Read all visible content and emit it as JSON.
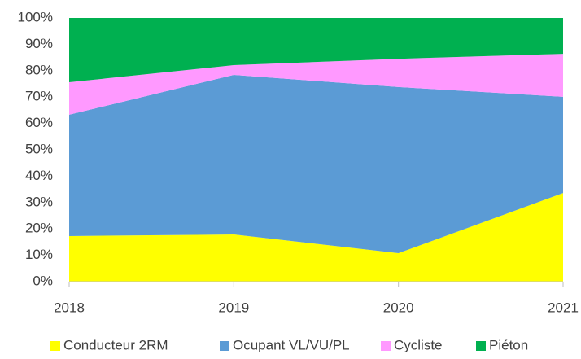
{
  "chart_data": {
    "type": "stacked_area",
    "categories": [
      "2018",
      "2019",
      "2020",
      "2021"
    ],
    "series": [
      {
        "name": "Conducteur 2RM",
        "color": "#ffff00",
        "values": [
          17.3,
          17.9,
          10.8,
          33.6
        ]
      },
      {
        "name": "Ocupant VL/VU/PL",
        "color": "#5b9bd5",
        "values": [
          46,
          60.5,
          63,
          36.5
        ]
      },
      {
        "name": "Cycliste",
        "color": "#ff99ff",
        "values": [
          12.3,
          3.7,
          10.7,
          16.3
        ]
      },
      {
        "name": "Piéton",
        "color": "#00b050",
        "values": [
          24.4,
          17.9,
          15.5,
          13.6
        ]
      }
    ],
    "ylim": [
      0,
      100
    ],
    "yticks": [
      {
        "value": 0,
        "label": "0%"
      },
      {
        "value": 10,
        "label": "10%"
      },
      {
        "value": 20,
        "label": "20%"
      },
      {
        "value": 30,
        "label": "30%"
      },
      {
        "value": 40,
        "label": "40%"
      },
      {
        "value": 50,
        "label": "50%"
      },
      {
        "value": 60,
        "label": "60%"
      },
      {
        "value": 70,
        "label": "70%"
      },
      {
        "value": 80,
        "label": "80%"
      },
      {
        "value": 90,
        "label": "90%"
      },
      {
        "value": 100,
        "label": "100%"
      }
    ],
    "grid": false,
    "legend": "bottom"
  }
}
